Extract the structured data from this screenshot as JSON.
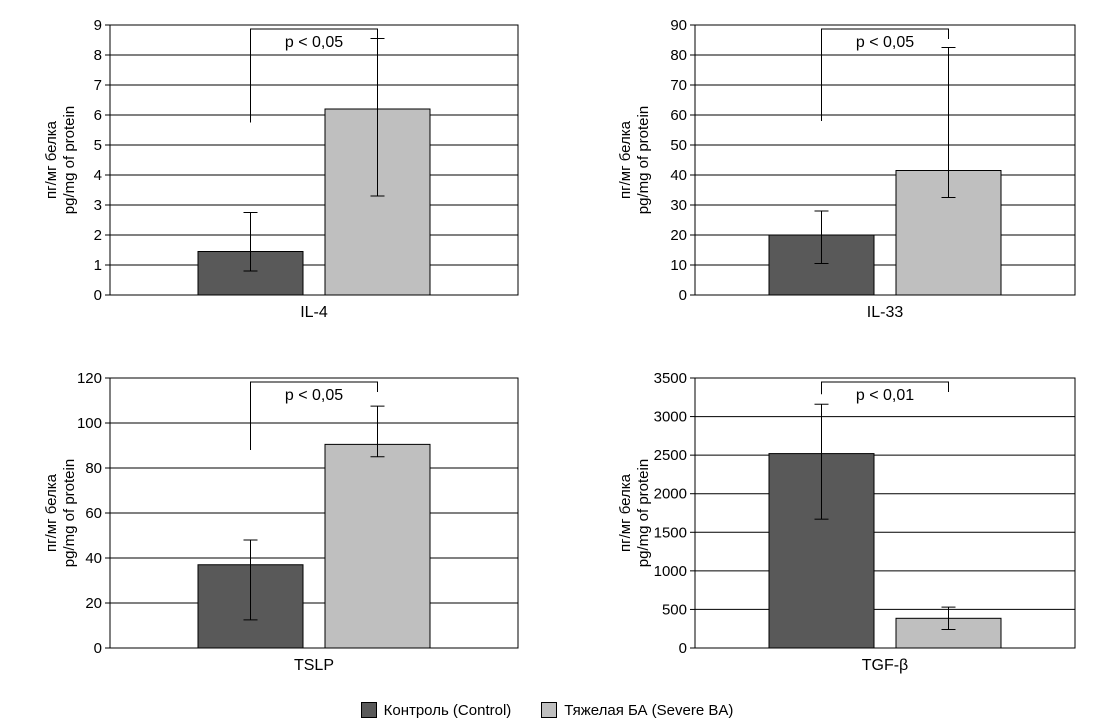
{
  "chart_data": [
    {
      "type": "bar",
      "title": "",
      "xlabel": "IL-4",
      "ylabel_ru": "пг/мг белка",
      "ylabel_en": "pg/mg of protein",
      "ylim": [
        0,
        9
      ],
      "yticks": [
        0,
        1,
        2,
        3,
        4,
        5,
        6,
        7,
        8,
        9
      ],
      "grid": true,
      "series": [
        {
          "name": "Контроль (Control)",
          "value": 1.45,
          "err_low": 0.8,
          "err_high": 2.75
        },
        {
          "name": "Тяжелая БА (Severe BA)",
          "value": 6.2,
          "err_low": 3.3,
          "err_high": 8.55
        }
      ],
      "significance": "p < 0,05"
    },
    {
      "type": "bar",
      "title": "",
      "xlabel": "IL-33",
      "ylabel_ru": "пг/мг белка",
      "ylabel_en": "pg/mg of protein",
      "ylim": [
        0,
        90
      ],
      "yticks": [
        0,
        10,
        20,
        30,
        40,
        50,
        60,
        70,
        80,
        90
      ],
      "grid": true,
      "series": [
        {
          "name": "Контроль (Control)",
          "value": 20,
          "err_low": 10.5,
          "err_high": 28
        },
        {
          "name": "Тяжелая БА (Severe BA)",
          "value": 41.5,
          "err_low": 32.5,
          "err_high": 82.5
        }
      ],
      "significance": "p < 0,05"
    },
    {
      "type": "bar",
      "title": "",
      "xlabel": "TSLP",
      "ylabel_ru": "пг/мг белка",
      "ylabel_en": "pg/mg of protein",
      "ylim": [
        0,
        120
      ],
      "yticks": [
        0,
        20,
        40,
        60,
        80,
        100,
        120
      ],
      "grid": true,
      "series": [
        {
          "name": "Контроль (Control)",
          "value": 37,
          "err_low": 12.5,
          "err_high": 48
        },
        {
          "name": "Тяжелая БА (Severe BA)",
          "value": 90.5,
          "err_low": 85,
          "err_high": 107.5
        }
      ],
      "significance": "p < 0,05"
    },
    {
      "type": "bar",
      "title": "",
      "xlabel": "TGF-β",
      "ylabel_ru": "пг/мг белка",
      "ylabel_en": "pg/mg of protein",
      "ylim": [
        0,
        3500
      ],
      "yticks": [
        0,
        500,
        1000,
        1500,
        2000,
        2500,
        3000,
        3500
      ],
      "grid": true,
      "series": [
        {
          "name": "Контроль (Control)",
          "value": 2520,
          "err_low": 1670,
          "err_high": 3160
        },
        {
          "name": "Тяжелая БА (Severe BA)",
          "value": 385,
          "err_low": 240,
          "err_high": 530
        }
      ],
      "significance": "p < 0,01"
    }
  ],
  "colors": {
    "control": "#595959",
    "severe": "#bfbfbf"
  },
  "legend": {
    "placement": "bottom-center",
    "control_label": "Контроль (Control)",
    "severe_label": "Тяжелая БА (Severe BA)"
  }
}
